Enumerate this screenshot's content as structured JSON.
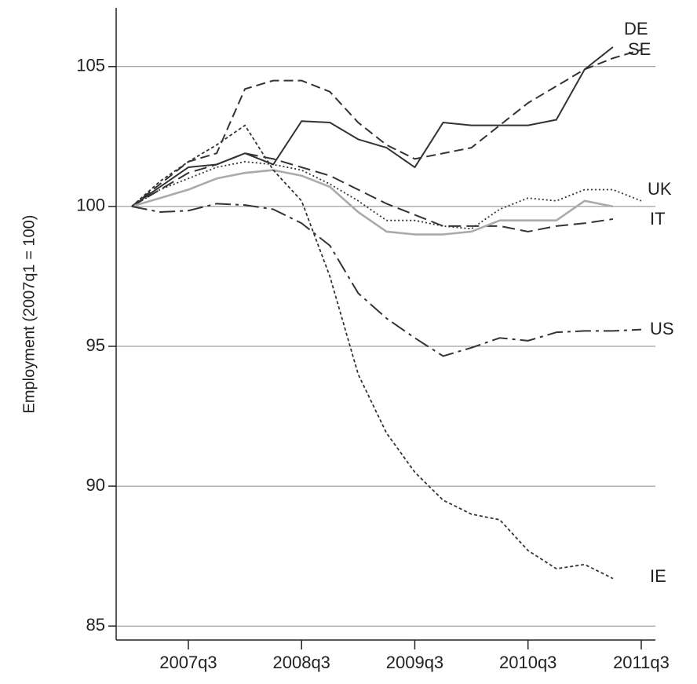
{
  "chart_data": {
    "type": "line",
    "y_label": "Employment (2007q1 = 100)",
    "x": [
      0,
      1,
      2,
      3,
      4,
      5,
      6,
      7,
      8,
      9,
      10,
      11,
      12,
      13,
      14,
      15,
      16,
      17,
      18
    ],
    "xlim": [
      -0.55,
      18.5
    ],
    "xticks": [
      {
        "value": 2,
        "label": "2007q3"
      },
      {
        "value": 6,
        "label": "2008q3"
      },
      {
        "value": 10,
        "label": "2009q3"
      },
      {
        "value": 14,
        "label": "2010q3"
      },
      {
        "value": 18,
        "label": "2011q3"
      }
    ],
    "ylim": [
      84.5,
      107.1
    ],
    "yticks": [
      85,
      90,
      95,
      100,
      105
    ],
    "grid": true,
    "series": [
      {
        "name": "DE",
        "color": "#333333",
        "values": [
          100,
          100.7,
          101.4,
          101.5,
          101.9,
          101.5,
          103.05,
          103.0,
          102.4,
          102.1,
          101.4,
          103.0,
          102.9,
          102.9,
          102.9,
          103.1,
          104.9,
          105.7,
          null
        ]
      },
      {
        "name": "SE",
        "color": "#333333",
        "values": [
          100,
          100.8,
          101.6,
          101.9,
          104.2,
          104.5,
          104.5,
          104.1,
          103.0,
          102.2,
          101.7,
          101.9,
          102.1,
          102.9,
          103.7,
          104.3,
          104.9,
          105.3,
          105.6
        ]
      },
      {
        "name": "UK",
        "color": "#333333",
        "values": [
          100,
          100.6,
          101.0,
          101.4,
          101.6,
          101.5,
          101.3,
          100.8,
          100.2,
          99.5,
          99.5,
          99.3,
          99.2,
          99.9,
          100.3,
          100.2,
          100.6,
          100.6,
          100.2
        ]
      },
      {
        "name": "IT",
        "color": "#333333",
        "values": [
          100,
          100.6,
          101.2,
          101.5,
          101.9,
          101.7,
          101.4,
          101.1,
          100.6,
          100.1,
          99.7,
          99.3,
          99.3,
          99.3,
          99.1,
          99.3,
          99.4,
          99.55,
          null
        ]
      },
      {
        "color": "#aaaaaa",
        "values": [
          100,
          100.3,
          100.6,
          101.0,
          101.2,
          101.3,
          101.1,
          100.7,
          99.8,
          99.1,
          99.0,
          99.0,
          99.1,
          99.5,
          99.5,
          99.5,
          100.2,
          100.0,
          null
        ]
      },
      {
        "name": "US",
        "color": "#333333",
        "values": [
          100,
          99.8,
          99.85,
          100.1,
          100.05,
          99.9,
          99.4,
          98.6,
          96.9,
          96.0,
          95.3,
          94.65,
          94.95,
          95.3,
          95.2,
          95.5,
          95.55,
          95.55,
          95.6
        ]
      },
      {
        "name": "IE",
        "color": "#333333",
        "values": [
          100,
          100.9,
          101.6,
          102.2,
          102.9,
          101.3,
          100.2,
          97.5,
          94.0,
          91.9,
          90.5,
          89.5,
          89.0,
          88.8,
          87.7,
          87.05,
          87.2,
          86.7,
          null
        ]
      }
    ]
  }
}
